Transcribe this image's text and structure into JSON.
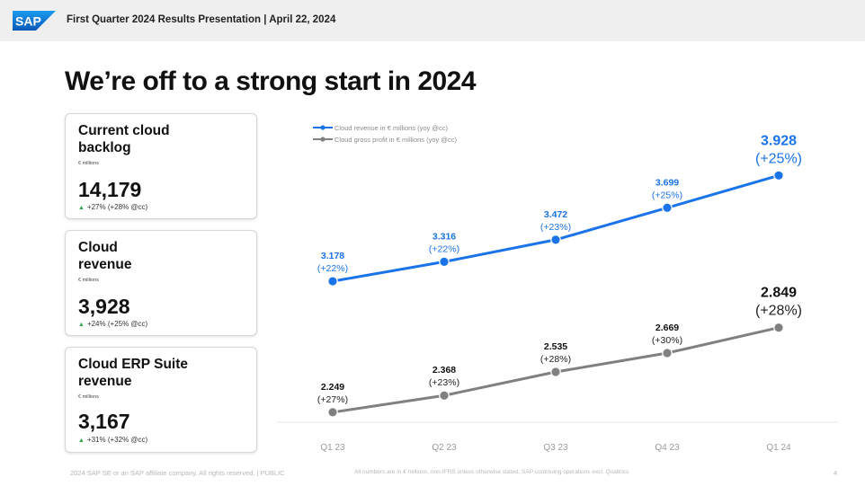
{
  "header": {
    "logo_text": "SAP",
    "title": "First Quarter 2024 Results Presentation | April 22, 2024"
  },
  "page_title": "We’re off to a strong start in 2024",
  "cards": [
    {
      "title": "Current cloud backlog",
      "unit": "€ millions",
      "value": "14,179",
      "growth": "+27% (+28% @cc)"
    },
    {
      "title": "Cloud revenue",
      "unit": "€ millions",
      "value": "3,928",
      "growth": "+24% (+25% @cc)"
    },
    {
      "title": "Cloud ERP Suite revenue",
      "unit": "€ millions",
      "value": "3,167",
      "growth": "+31% (+32% @cc)"
    }
  ],
  "footer": {
    "copyright": "2024 SAP SE or an SAP affiliate company. All rights reserved. | PUBLIC",
    "note": "All numbers are in € millions, non-IFRS unless otherwise stated, SAP continuing operations excl. Qualtrics",
    "page_number": "4"
  },
  "colors": {
    "blue": "#1a73e8",
    "gray": "#808080",
    "positive": "#2aa84a"
  },
  "chart_data": {
    "type": "line",
    "categories": [
      "Q1 23",
      "Q2 23",
      "Q3 23",
      "Q4 23",
      "Q1 24"
    ],
    "series": [
      {
        "name": "Cloud revenue in € millions (yoy @cc)",
        "color": "#1a73e8",
        "values": [
          3.178,
          3.316,
          3.472,
          3.699,
          3.928
        ],
        "value_labels": [
          "3.178",
          "3.316",
          "3.472",
          "3.699",
          "3.928"
        ],
        "growth_labels": [
          "(+22%)",
          "(+22%)",
          "(+23%)",
          "(+25%)",
          "(+25%)"
        ]
      },
      {
        "name": "Cloud gross profit in € millions (yoy @cc)",
        "color": "#808080",
        "values": [
          2.249,
          2.368,
          2.535,
          2.669,
          2.849
        ],
        "value_labels": [
          "2.249",
          "2.368",
          "2.535",
          "2.669",
          "2.849"
        ],
        "growth_labels": [
          "(+27%)",
          "(+23%)",
          "(+28%)",
          "(+30%)",
          "(+28%)"
        ]
      }
    ],
    "legend_position": "top-left",
    "grid": false
  }
}
